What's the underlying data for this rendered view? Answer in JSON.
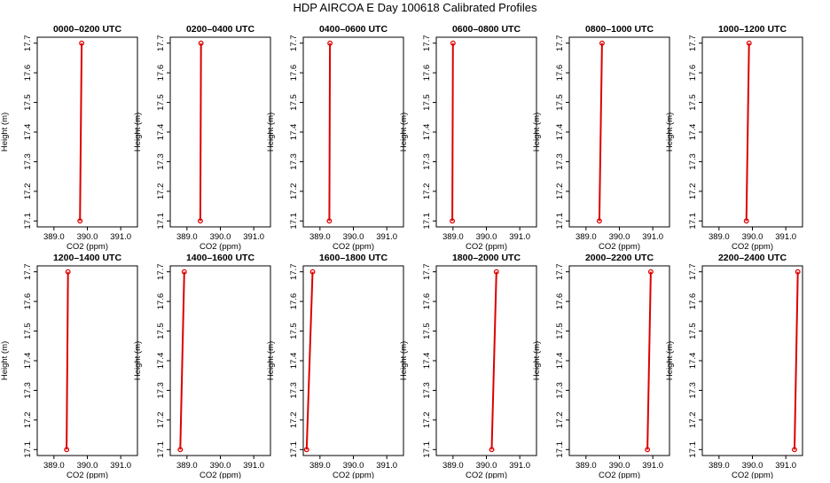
{
  "title": "HDP AIRCOA E  Day 100618  Calibrated Profiles",
  "chart_data": [
    {
      "type": "line",
      "title": "0000–0200 UTC",
      "xlabel": "CO2 (ppm)",
      "ylabel": "Height (m)",
      "xlim": [
        388.5,
        391.5
      ],
      "ylim": [
        17.08,
        17.72
      ],
      "xticks": [
        "389.0",
        "390.0",
        "391.0"
      ],
      "yticks": [
        "17.1",
        "17.2",
        "17.3",
        "17.4",
        "17.5",
        "17.6",
        "17.7"
      ],
      "series": [
        {
          "x": [
            389.78,
            389.83
          ],
          "y": [
            17.1,
            17.7
          ]
        }
      ]
    },
    {
      "type": "line",
      "title": "0200–0400 UTC",
      "xlabel": "CO2 (ppm)",
      "ylabel": "Height (m)",
      "xlim": [
        388.5,
        391.5
      ],
      "ylim": [
        17.08,
        17.72
      ],
      "xticks": [
        "389.0",
        "390.0",
        "391.0"
      ],
      "yticks": [
        "17.1",
        "17.2",
        "17.3",
        "17.4",
        "17.5",
        "17.6",
        "17.7"
      ],
      "series": [
        {
          "x": [
            389.4,
            389.42
          ],
          "y": [
            17.1,
            17.7
          ]
        }
      ]
    },
    {
      "type": "line",
      "title": "0400–0600 UTC",
      "xlabel": "CO2 (ppm)",
      "ylabel": "Height (m)",
      "xlim": [
        388.5,
        391.5
      ],
      "ylim": [
        17.08,
        17.72
      ],
      "xticks": [
        "389.0",
        "390.0",
        "391.0"
      ],
      "yticks": [
        "17.1",
        "17.2",
        "17.3",
        "17.4",
        "17.5",
        "17.6",
        "17.7"
      ],
      "series": [
        {
          "x": [
            389.28,
            389.3
          ],
          "y": [
            17.1,
            17.7
          ]
        }
      ]
    },
    {
      "type": "line",
      "title": "0600–0800 UTC",
      "xlabel": "CO2 (ppm)",
      "ylabel": "Height (m)",
      "xlim": [
        388.5,
        391.5
      ],
      "ylim": [
        17.08,
        17.72
      ],
      "xticks": [
        "389.0",
        "390.0",
        "391.0"
      ],
      "yticks": [
        "17.1",
        "17.2",
        "17.3",
        "17.4",
        "17.5",
        "17.6",
        "17.7"
      ],
      "series": [
        {
          "x": [
            388.98,
            389.0
          ],
          "y": [
            17.1,
            17.7
          ]
        }
      ]
    },
    {
      "type": "line",
      "title": "0800–1000 UTC",
      "xlabel": "CO2 (ppm)",
      "ylabel": "Height (m)",
      "xlim": [
        388.5,
        391.5
      ],
      "ylim": [
        17.08,
        17.72
      ],
      "xticks": [
        "389.0",
        "390.0",
        "391.0"
      ],
      "yticks": [
        "17.1",
        "17.2",
        "17.3",
        "17.4",
        "17.5",
        "17.6",
        "17.7"
      ],
      "series": [
        {
          "x": [
            389.4,
            389.48
          ],
          "y": [
            17.1,
            17.7
          ]
        }
      ]
    },
    {
      "type": "line",
      "title": "1000–1200 UTC",
      "xlabel": "CO2 (ppm)",
      "ylabel": "Height (m)",
      "xlim": [
        388.5,
        391.5
      ],
      "ylim": [
        17.08,
        17.72
      ],
      "xticks": [
        "389.0",
        "390.0",
        "391.0"
      ],
      "yticks": [
        "17.1",
        "17.2",
        "17.3",
        "17.4",
        "17.5",
        "17.6",
        "17.7"
      ],
      "series": [
        {
          "x": [
            389.82,
            389.9
          ],
          "y": [
            17.1,
            17.7
          ]
        }
      ]
    },
    {
      "type": "line",
      "title": "1200–1400 UTC",
      "xlabel": "CO2 (ppm)",
      "ylabel": "Height (m)",
      "xlim": [
        388.5,
        391.5
      ],
      "ylim": [
        17.08,
        17.72
      ],
      "xticks": [
        "389.0",
        "390.0",
        "391.0"
      ],
      "yticks": [
        "17.1",
        "17.2",
        "17.3",
        "17.4",
        "17.5",
        "17.6",
        "17.7"
      ],
      "series": [
        {
          "x": [
            389.38,
            389.42
          ],
          "y": [
            17.1,
            17.7
          ]
        }
      ]
    },
    {
      "type": "line",
      "title": "1400–1600 UTC",
      "xlabel": "CO2 (ppm)",
      "ylabel": "Height (m)",
      "xlim": [
        388.5,
        391.5
      ],
      "ylim": [
        17.08,
        17.72
      ],
      "xticks": [
        "389.0",
        "390.0",
        "391.0"
      ],
      "yticks": [
        "17.1",
        "17.2",
        "17.3",
        "17.4",
        "17.5",
        "17.6",
        "17.7"
      ],
      "series": [
        {
          "x": [
            388.8,
            388.92
          ],
          "y": [
            17.1,
            17.7
          ]
        }
      ]
    },
    {
      "type": "line",
      "title": "1600–1800 UTC",
      "xlabel": "CO2 (ppm)",
      "ylabel": "Height (m)",
      "xlim": [
        388.5,
        391.5
      ],
      "ylim": [
        17.08,
        17.72
      ],
      "xticks": [
        "389.0",
        "390.0",
        "391.0"
      ],
      "yticks": [
        "17.1",
        "17.2",
        "17.3",
        "17.4",
        "17.5",
        "17.6",
        "17.7"
      ],
      "series": [
        {
          "x": [
            388.6,
            388.78
          ],
          "y": [
            17.1,
            17.7
          ]
        }
      ]
    },
    {
      "type": "line",
      "title": "1800–2000 UTC",
      "xlabel": "CO2 (ppm)",
      "ylabel": "Height (m)",
      "xlim": [
        388.5,
        391.5
      ],
      "ylim": [
        17.08,
        17.72
      ],
      "xticks": [
        "389.0",
        "390.0",
        "391.0"
      ],
      "yticks": [
        "17.1",
        "17.2",
        "17.3",
        "17.4",
        "17.5",
        "17.6",
        "17.7"
      ],
      "series": [
        {
          "x": [
            390.16,
            390.3
          ],
          "y": [
            17.1,
            17.7
          ]
        }
      ]
    },
    {
      "type": "line",
      "title": "2000–2200 UTC",
      "xlabel": "CO2 (ppm)",
      "ylabel": "Height (m)",
      "xlim": [
        388.5,
        391.5
      ],
      "ylim": [
        17.08,
        17.72
      ],
      "xticks": [
        "389.0",
        "390.0",
        "391.0"
      ],
      "yticks": [
        "17.1",
        "17.2",
        "17.3",
        "17.4",
        "17.5",
        "17.6",
        "17.7"
      ],
      "series": [
        {
          "x": [
            390.84,
            390.94
          ],
          "y": [
            17.1,
            17.7
          ]
        }
      ]
    },
    {
      "type": "line",
      "title": "2200–2400 UTC",
      "xlabel": "CO2 (ppm)",
      "ylabel": "Height (m)",
      "xlim": [
        388.5,
        391.5
      ],
      "ylim": [
        17.08,
        17.72
      ],
      "xticks": [
        "389.0",
        "390.0",
        "391.0"
      ],
      "yticks": [
        "17.1",
        "17.2",
        "17.3",
        "17.4",
        "17.5",
        "17.6",
        "17.7"
      ],
      "series": [
        {
          "x": [
            391.26,
            391.36
          ],
          "y": [
            17.1,
            17.7
          ]
        }
      ]
    }
  ],
  "colors": {
    "profile_line": "#dd0000",
    "endpoint_marker": "#dd0000",
    "axis": "#000000",
    "background": "#ffffff"
  }
}
